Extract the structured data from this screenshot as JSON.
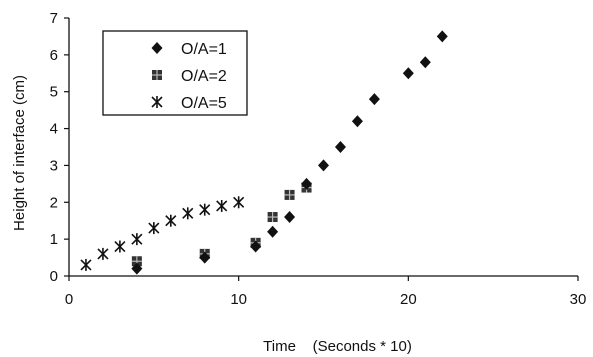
{
  "chart_data": {
    "type": "scatter",
    "title": "",
    "xlabel": "Time    (Seconds * 10)",
    "ylabel": "Height of interface  (cm)",
    "xlim": [
      0,
      30
    ],
    "ylim": [
      0,
      7
    ],
    "x_ticks": [
      "0",
      "10",
      "20",
      "30"
    ],
    "y_ticks": [
      "0",
      "1",
      "2",
      "3",
      "4",
      "5",
      "6",
      "7"
    ],
    "grid": false,
    "legend_position": "top-left",
    "series": [
      {
        "name": "O/A=1",
        "marker": "diamond",
        "x": [
          4,
          8,
          11,
          12,
          13,
          14,
          15,
          16,
          17,
          18,
          20,
          21,
          22
        ],
        "y": [
          0.2,
          0.5,
          0.8,
          1.2,
          1.6,
          2.5,
          3.0,
          3.5,
          4.2,
          4.8,
          5.5,
          5.8,
          6.5
        ]
      },
      {
        "name": "O/A=2",
        "marker": "square",
        "x": [
          4,
          8,
          11,
          12,
          13,
          14
        ],
        "y": [
          0.4,
          0.6,
          0.9,
          1.6,
          2.2,
          2.4
        ]
      },
      {
        "name": "O/A=5",
        "marker": "asterisk",
        "x": [
          1,
          2,
          3,
          4,
          5,
          6,
          7,
          8,
          9,
          10
        ],
        "y": [
          0.3,
          0.6,
          0.8,
          1.0,
          1.3,
          1.5,
          1.7,
          1.8,
          1.9,
          2.0
        ]
      }
    ]
  }
}
